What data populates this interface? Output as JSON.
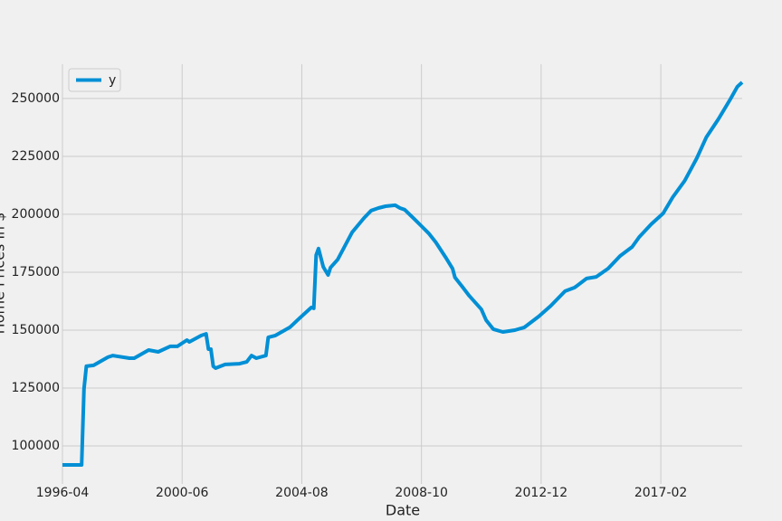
{
  "chart_data": {
    "type": "line",
    "xlabel": "Date",
    "ylabel": "Home Prices in $",
    "x": [
      "1996-04",
      "1996-12",
      "1997-01",
      "1997-02",
      "1997-05",
      "1997-11",
      "1998-01",
      "1998-08",
      "1998-10",
      "1999-04",
      "1999-08",
      "2000-01",
      "2000-04",
      "2000-08",
      "2000-09",
      "2001-02",
      "2001-04",
      "2001-05",
      "2001-06",
      "2001-07",
      "2001-08",
      "2001-12",
      "2002-06",
      "2002-09",
      "2002-11",
      "2003-01",
      "2003-05",
      "2003-06",
      "2003-09",
      "2004-03",
      "2004-07",
      "2004-12",
      "2005-01",
      "2005-02",
      "2005-03",
      "2005-05",
      "2005-07",
      "2005-08",
      "2005-11",
      "2006-02",
      "2006-05",
      "2006-10",
      "2007-01",
      "2007-04",
      "2007-07",
      "2007-11",
      "2008-01",
      "2008-03",
      "2008-07",
      "2008-10",
      "2009-01",
      "2009-04",
      "2009-08",
      "2009-11",
      "2009-12",
      "2010-03",
      "2010-06",
      "2010-11",
      "2011-01",
      "2011-04",
      "2011-08",
      "2012-01",
      "2012-05",
      "2012-11",
      "2013-04",
      "2013-10",
      "2014-02",
      "2014-07",
      "2014-11",
      "2015-04",
      "2015-09",
      "2016-02",
      "2016-05",
      "2016-10",
      "2017-03",
      "2017-07",
      "2017-12",
      "2018-05",
      "2018-09",
      "2019-02",
      "2019-07",
      "2019-10",
      "2019-12"
    ],
    "series": [
      {
        "name": "y",
        "color": "#008fd5",
        "values": [
          91800,
          91800,
          124600,
          134400,
          134800,
          138300,
          139000,
          137900,
          137900,
          141400,
          140600,
          143000,
          143000,
          145700,
          144900,
          147700,
          148400,
          141800,
          141800,
          134400,
          133600,
          135200,
          135500,
          136300,
          139000,
          137900,
          139000,
          146900,
          147700,
          151200,
          155100,
          159800,
          159400,
          182400,
          185200,
          177300,
          173800,
          177000,
          180500,
          186300,
          192200,
          198400,
          201600,
          202700,
          203500,
          203900,
          202700,
          202000,
          198000,
          194900,
          191800,
          187900,
          181600,
          176600,
          172700,
          168800,
          164800,
          159000,
          154300,
          150400,
          149200,
          150000,
          151200,
          155900,
          160500,
          166800,
          168400,
          172300,
          173000,
          176600,
          182000,
          185900,
          190200,
          195700,
          200400,
          207400,
          214500,
          224200,
          233200,
          241000,
          249600,
          255100,
          257000
        ]
      }
    ],
    "xlim": [
      "1996-04",
      "2019-12"
    ],
    "xticks": [
      "1996-04",
      "2000-06",
      "2004-08",
      "2008-10",
      "2012-12",
      "2017-02"
    ],
    "ylim": [
      83600,
      264800
    ],
    "yticks": [
      100000,
      125000,
      150000,
      175000,
      200000,
      225000,
      250000
    ],
    "grid": true,
    "legend": "upper left"
  }
}
